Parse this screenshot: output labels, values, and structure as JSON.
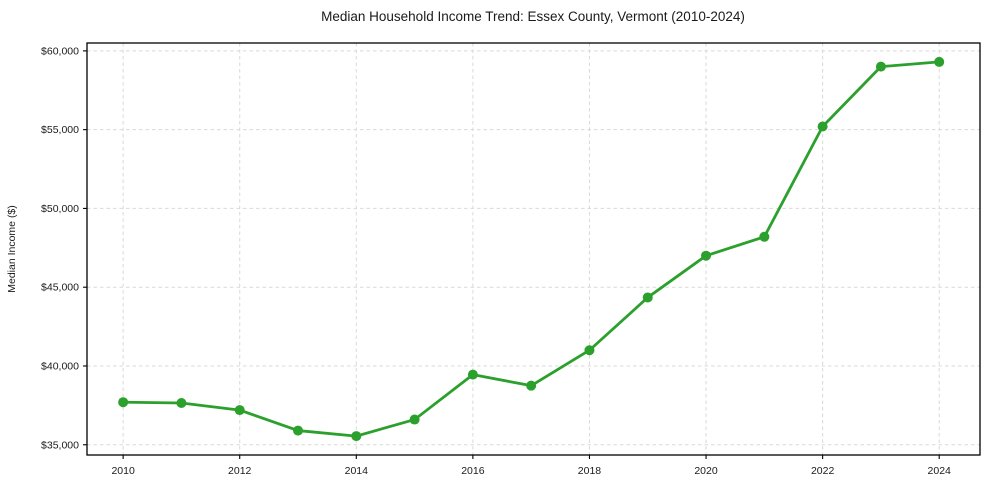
{
  "page": {
    "background": "#ffffff"
  },
  "chart_data": {
    "type": "line",
    "title": "Median Household Income Trend: Essex County, Vermont (2010-2024)",
    "xlabel": "",
    "ylabel": "Median Income ($)",
    "x": [
      2010,
      2011,
      2012,
      2013,
      2014,
      2015,
      2016,
      2017,
      2018,
      2019,
      2020,
      2021,
      2022,
      2023,
      2024
    ],
    "series": [
      {
        "name": "Median household income",
        "values": [
          37700,
          37650,
          37200,
          35900,
          35550,
          36600,
          39450,
          38750,
          41000,
          44350,
          47000,
          48200,
          55200,
          59000,
          59300
        ],
        "color": "#2ca02c",
        "marker": "circle"
      }
    ],
    "xlim": [
      2009.38,
      2024.7
    ],
    "ylim": [
      34350,
      60500
    ],
    "xticks": {
      "values": [
        2010,
        2012,
        2014,
        2016,
        2018,
        2020,
        2022,
        2024
      ],
      "labels": [
        "2010",
        "2012",
        "2014",
        "2016",
        "2018",
        "2020",
        "2022",
        "2024"
      ]
    },
    "yticks": {
      "values": [
        35000,
        40000,
        45000,
        50000,
        55000,
        60000
      ],
      "labels": [
        "$35,000",
        "$40,000",
        "$45,000",
        "$50,000",
        "$55,000",
        "$60,000"
      ]
    },
    "grid": {
      "on": true,
      "color": "#d9d9d9",
      "dash": "3.5 3"
    },
    "legend": {
      "visible": false
    },
    "styles": {
      "line_width": 2.8,
      "marker_radius": 5,
      "spine_color": "#000000",
      "spine_width": 1.3,
      "tick_length": 4,
      "text_color": "#1a1a1a"
    }
  }
}
